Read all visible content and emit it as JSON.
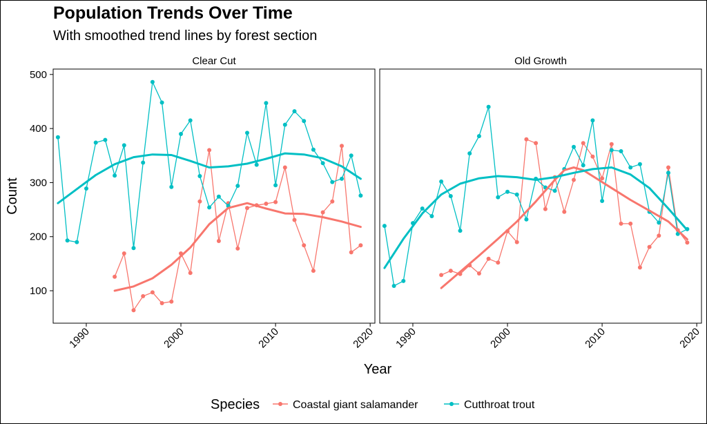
{
  "title": "Population Trends Over Time",
  "subtitle": "With smoothed trend lines by forest section",
  "chart_data": {
    "type": "line",
    "xlabel": "Year",
    "ylabel": "Count",
    "xlim": [
      1986.5,
      2020.5
    ],
    "ylim": [
      40,
      510
    ],
    "x_ticks": [
      1990,
      2000,
      2010,
      2020
    ],
    "x_tick_labels": [
      "1990",
      "2000",
      "2010",
      "2020"
    ],
    "y_ticks": [
      100,
      200,
      300,
      400,
      500
    ],
    "y_tick_labels": [
      "100",
      "200",
      "300",
      "400",
      "500"
    ],
    "grid": false,
    "legend_position": "bottom",
    "legend": {
      "title": "Species",
      "entries": [
        "Coastal giant salamander",
        "Cutthroat trout"
      ]
    },
    "colors": {
      "Coastal giant salamander": "#F8766D",
      "Cutthroat trout": "#00BFC4"
    },
    "panels": [
      {
        "name": "Clear Cut",
        "series": [
          {
            "name": "Coastal giant salamander",
            "x": [
              1993,
              1994,
              1995,
              1996,
              1997,
              1998,
              1999,
              2000,
              2001,
              2002,
              2003,
              2004,
              2005,
              2006,
              2007,
              2008,
              2009,
              2010,
              2011,
              2012,
              2013,
              2014,
              2015,
              2016,
              2017,
              2018,
              2019
            ],
            "values": [
              126,
              169,
              64,
              90,
              97,
              77,
              80,
              169,
              133,
              265,
              360,
              192,
              262,
              178,
              253,
              258,
              261,
              264,
              328,
              231,
              184,
              137,
              245,
              265,
              368,
              171,
              184
            ],
            "smooth": [
              [
                1993,
                100
              ],
              [
                1995,
                108
              ],
              [
                1997,
                123
              ],
              [
                1999,
                148
              ],
              [
                2001,
                180
              ],
              [
                2003,
                223
              ],
              [
                2005,
                253
              ],
              [
                2007,
                262
              ],
              [
                2009,
                252
              ],
              [
                2011,
                243
              ],
              [
                2013,
                242
              ],
              [
                2015,
                236
              ],
              [
                2017,
                228
              ],
              [
                2019,
                218
              ]
            ]
          },
          {
            "name": "Cutthroat trout",
            "x": [
              1987,
              1988,
              1989,
              1990,
              1991,
              1992,
              1993,
              1994,
              1995,
              1996,
              1997,
              1998,
              1999,
              2000,
              2001,
              2002,
              2003,
              2004,
              2005,
              2006,
              2007,
              2008,
              2009,
              2010,
              2011,
              2012,
              2013,
              2014,
              2015,
              2016,
              2017,
              2018,
              2019
            ],
            "values": [
              384,
              193,
              190,
              289,
              374,
              379,
              313,
              369,
              179,
              337,
              486,
              448,
              292,
              390,
              415,
              312,
              254,
              274,
              257,
              294,
              392,
              333,
              447,
              295,
              407,
              432,
              414,
              361,
              336,
              301,
              307,
              350,
              276
            ],
            "smooth": [
              [
                1987,
                262
              ],
              [
                1989,
                288
              ],
              [
                1991,
                314
              ],
              [
                1993,
                334
              ],
              [
                1995,
                347
              ],
              [
                1997,
                352
              ],
              [
                1999,
                351
              ],
              [
                2001,
                340
              ],
              [
                2003,
                328
              ],
              [
                2005,
                330
              ],
              [
                2007,
                335
              ],
              [
                2009,
                344
              ],
              [
                2011,
                354
              ],
              [
                2013,
                352
              ],
              [
                2015,
                345
              ],
              [
                2017,
                330
              ],
              [
                2019,
                307
              ]
            ]
          }
        ]
      },
      {
        "name": "Old Growth",
        "series": [
          {
            "name": "Coastal giant salamander",
            "x": [
              1993,
              1994,
              1995,
              1996,
              1997,
              1998,
              1999,
              2000,
              2001,
              2002,
              2003,
              2004,
              2005,
              2006,
              2007,
              2008,
              2009,
              2010,
              2011,
              2012,
              2013,
              2014,
              2015,
              2016,
              2017,
              2018,
              2019
            ],
            "values": [
              129,
              137,
              131,
              147,
              132,
              159,
              152,
              210,
              190,
              380,
              373,
              251,
              310,
              246,
              305,
              373,
              348,
              308,
              371,
              224,
              224,
              143,
              181,
              202,
              328,
              212,
              189
            ],
            "smooth": [
              [
                1993,
                105
              ],
              [
                1995,
                135
              ],
              [
                1997,
                165
              ],
              [
                1999,
                196
              ],
              [
                2001,
                228
              ],
              [
                2003,
                265
              ],
              [
                2005,
                305
              ],
              [
                2006,
                323
              ],
              [
                2007,
                328
              ],
              [
                2008,
                323
              ],
              [
                2009,
                312
              ],
              [
                2011,
                290
              ],
              [
                2013,
                268
              ],
              [
                2015,
                248
              ],
              [
                2017,
                228
              ],
              [
                2019,
                195
              ]
            ]
          },
          {
            "name": "Cutthroat trout",
            "x": [
              1987,
              1988,
              1989,
              1990,
              1991,
              1992,
              1993,
              1994,
              1995,
              1996,
              1997,
              1998,
              1999,
              2000,
              2001,
              2002,
              2003,
              2004,
              2005,
              2006,
              2007,
              2008,
              2009,
              2010,
              2011,
              2012,
              2013,
              2014,
              2015,
              2016,
              2017,
              2018,
              2019
            ],
            "values": [
              220,
              109,
              118,
              225,
              252,
              238,
              302,
              275,
              211,
              354,
              386,
              440,
              273,
              283,
              278,
              232,
              307,
              291,
              285,
              325,
              366,
              332,
              415,
              266,
              360,
              358,
              328,
              334,
              246,
              226,
              318,
              205,
              214
            ],
            "smooth": [
              [
                1987,
                142
              ],
              [
                1989,
                196
              ],
              [
                1991,
                243
              ],
              [
                1993,
                278
              ],
              [
                1995,
                298
              ],
              [
                1997,
                308
              ],
              [
                1999,
                312
              ],
              [
                2001,
                310
              ],
              [
                2003,
                305
              ],
              [
                2005,
                310
              ],
              [
                2007,
                318
              ],
              [
                2009,
                325
              ],
              [
                2011,
                328
              ],
              [
                2013,
                315
              ],
              [
                2015,
                290
              ],
              [
                2017,
                252
              ],
              [
                2019,
                212
              ]
            ]
          }
        ]
      }
    ]
  }
}
